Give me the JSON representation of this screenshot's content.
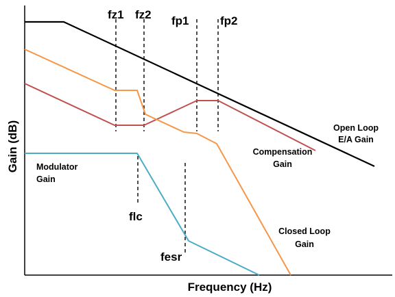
{
  "axes": {
    "x_label": "Frequency (Hz)",
    "y_label": "Gain (dB)",
    "line_color": "#000000"
  },
  "markers": {
    "fz1": "fz1",
    "fz2": "fz2",
    "fp1": "fp1",
    "fp2": "fp2",
    "flc": "flc",
    "fesr": "fesr"
  },
  "curves": {
    "open_loop": {
      "line1": "Open Loop",
      "line2": "E/A Gain",
      "color": "#000000"
    },
    "compensation": {
      "line1": "Compensation",
      "line2": "Gain",
      "color": "#c0504d"
    },
    "modulator": {
      "line1": "Modulator",
      "line2": "Gain",
      "color": "#4bacc6"
    },
    "closed_loop": {
      "line1": "Closed Loop",
      "line2": "Gain",
      "color": "#f79646"
    }
  }
}
